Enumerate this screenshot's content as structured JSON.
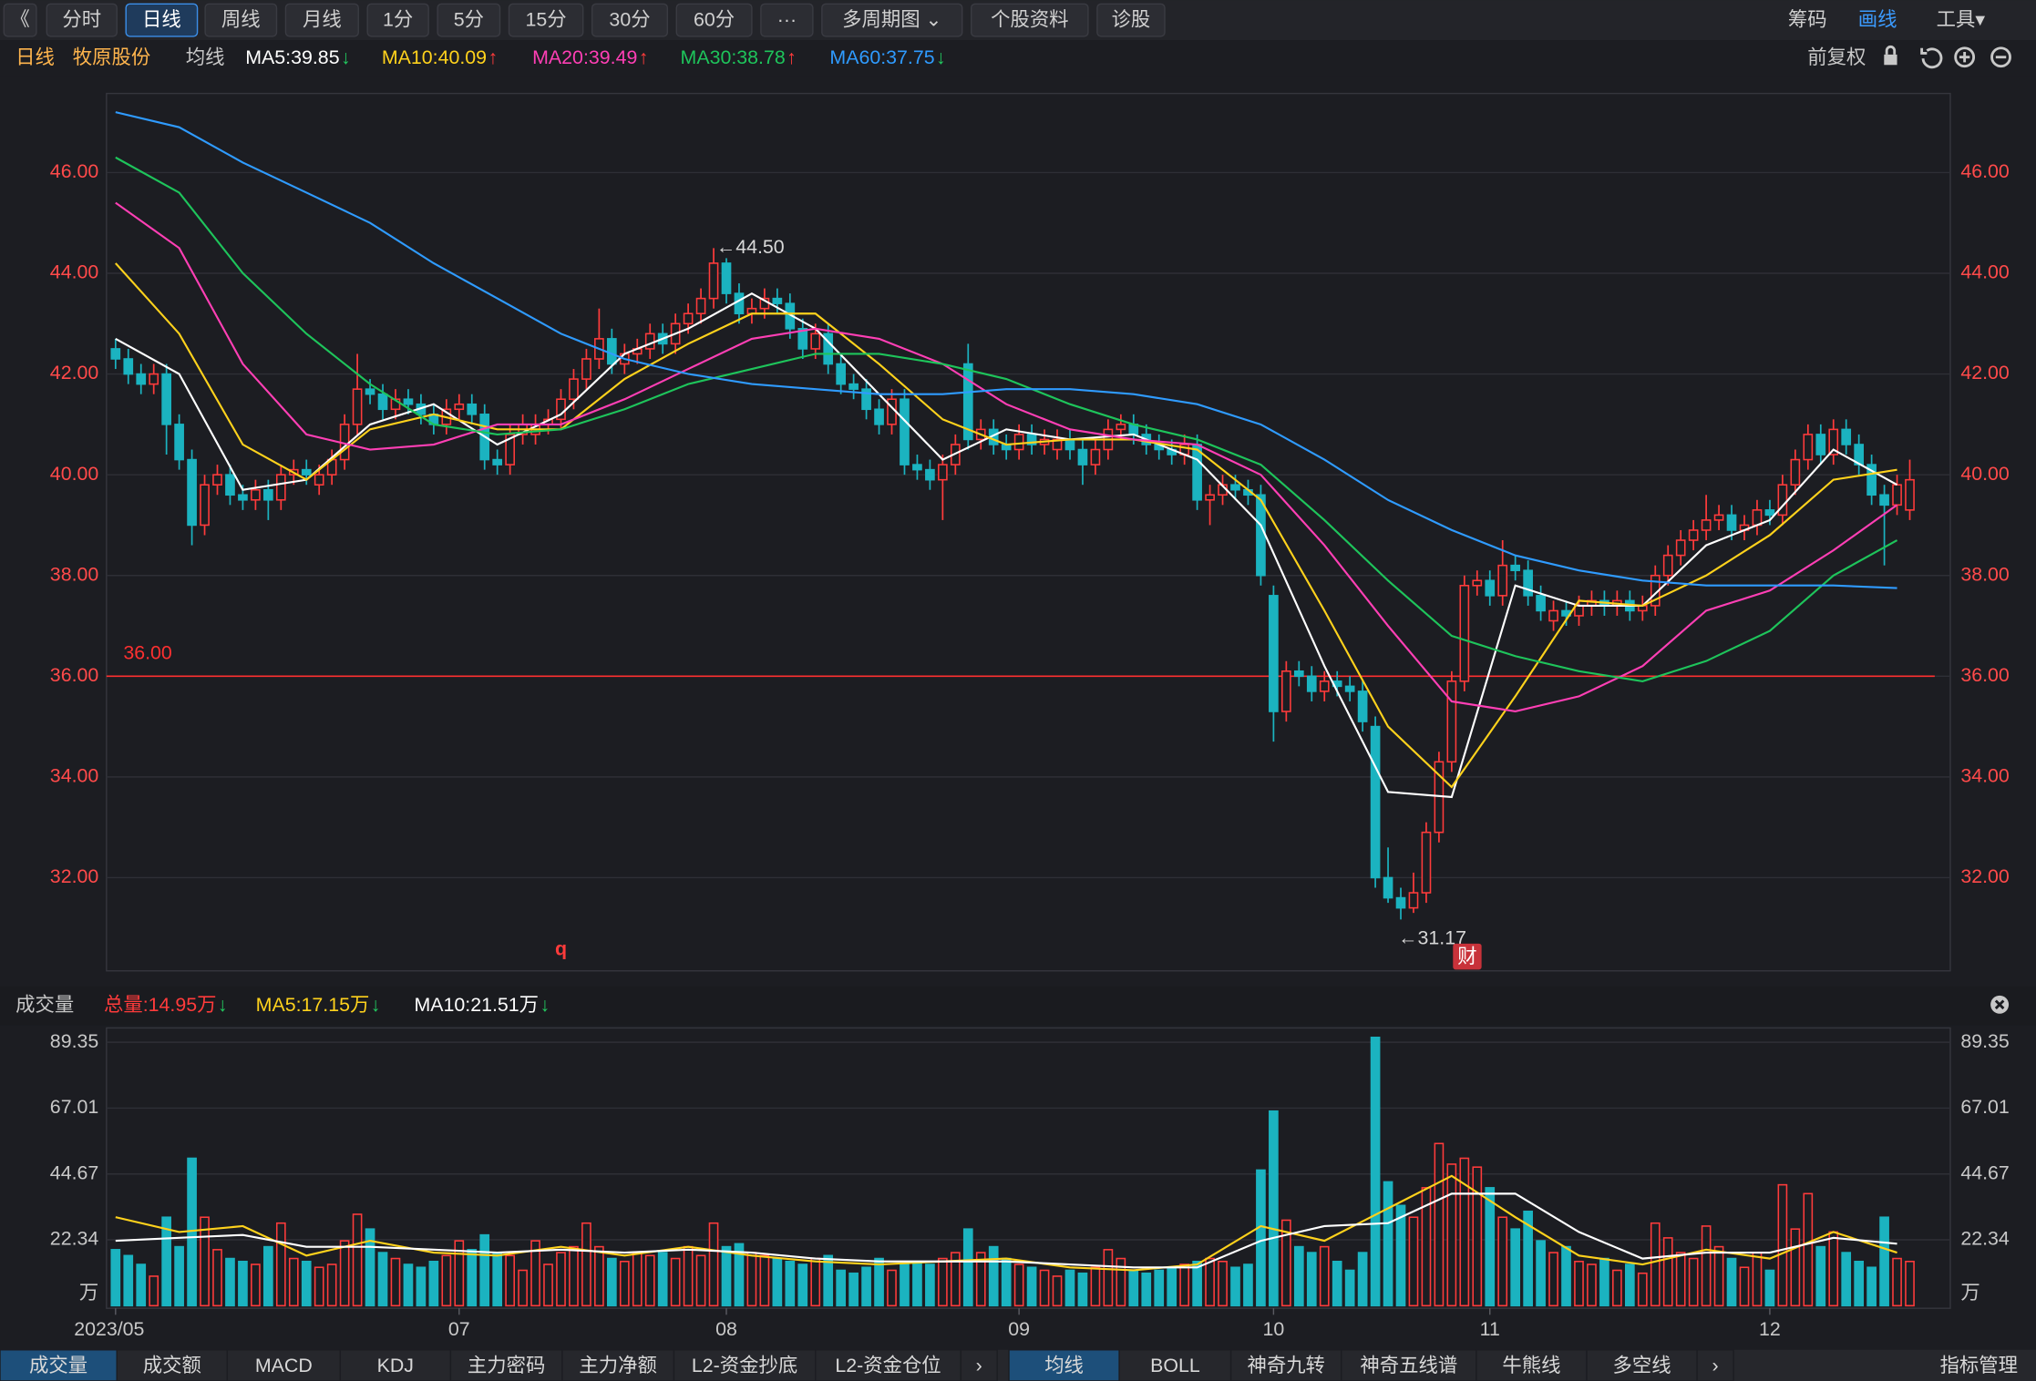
{
  "toolbar": {
    "left": [
      "《",
      "分时",
      "日线",
      "周线",
      "月线",
      "1分",
      "5分",
      "15分",
      "30分",
      "60分",
      "···",
      "多周期图 ⌄",
      "个股资料",
      "诊股"
    ],
    "active": 2,
    "right": [
      "筹码",
      "画线",
      "工具▾"
    ],
    "highlight": 1
  },
  "chart_data": {
    "type": "candlestick",
    "view": "日线",
    "stock": "牧原股份",
    "ma_label": "均线",
    "adjust": "前复权",
    "up_color": "#ff3b3b",
    "down_color": "#1bb3c0",
    "ylim": [
      30.15,
      47.57
    ],
    "yticks": [
      {
        "value": 32,
        "label": "32.00"
      },
      {
        "value": 34,
        "label": "34.00"
      },
      {
        "value": 36,
        "label": "36.00"
      },
      {
        "value": 38,
        "label": "38.00"
      },
      {
        "value": 40,
        "label": "40.00"
      },
      {
        "value": 42,
        "label": "42.00"
      },
      {
        "value": 44,
        "label": "44.00"
      },
      {
        "value": 46,
        "label": "46.00"
      }
    ],
    "grid": true,
    "xticks": [
      {
        "value": 0,
        "label": "2023/05"
      },
      {
        "value": 27,
        "label": "07"
      },
      {
        "value": 48,
        "label": "08"
      },
      {
        "value": 71,
        "label": "09"
      },
      {
        "value": 91,
        "label": "10"
      },
      {
        "value": 108,
        "label": "11"
      },
      {
        "value": 130,
        "label": "12"
      }
    ],
    "hline": {
      "value": 36,
      "label": "36.00",
      "color": "#ff3030"
    },
    "annotations": {
      "high": "←44.50",
      "low": "←31.17",
      "marker": "q",
      "badge": "财"
    },
    "candles": [
      [
        42.5,
        42.7,
        42.1,
        42.3
      ],
      [
        42.3,
        42.5,
        41.8,
        42.0
      ],
      [
        42.0,
        42.2,
        41.6,
        41.8
      ],
      [
        41.8,
        42.2,
        41.6,
        42.0
      ],
      [
        42.0,
        42.2,
        40.4,
        41.0
      ],
      [
        41.0,
        41.2,
        40.1,
        40.3
      ],
      [
        40.3,
        40.5,
        38.6,
        39.0
      ],
      [
        39.0,
        40.0,
        38.8,
        39.8
      ],
      [
        39.8,
        40.2,
        39.6,
        40.0
      ],
      [
        40.0,
        40.2,
        39.4,
        39.6
      ],
      [
        39.6,
        39.8,
        39.3,
        39.5
      ],
      [
        39.5,
        39.9,
        39.3,
        39.7
      ],
      [
        39.7,
        39.9,
        39.1,
        39.5
      ],
      [
        39.5,
        40.2,
        39.3,
        40.0
      ],
      [
        40.0,
        40.3,
        39.8,
        40.1
      ],
      [
        40.1,
        40.3,
        39.8,
        40.0
      ],
      [
        39.8,
        40.2,
        39.6,
        40.0
      ],
      [
        40.0,
        40.5,
        39.8,
        40.3
      ],
      [
        40.3,
        41.2,
        40.1,
        41.0
      ],
      [
        41.0,
        42.4,
        40.8,
        41.7
      ],
      [
        41.7,
        41.9,
        41.4,
        41.6
      ],
      [
        41.6,
        41.8,
        41.1,
        41.3
      ],
      [
        41.3,
        41.7,
        41.1,
        41.5
      ],
      [
        41.5,
        41.7,
        41.2,
        41.4
      ],
      [
        41.4,
        41.6,
        41.0,
        41.2
      ],
      [
        41.2,
        41.4,
        40.8,
        41.0
      ],
      [
        41.0,
        41.5,
        40.8,
        41.3
      ],
      [
        41.3,
        41.6,
        41.1,
        41.4
      ],
      [
        41.4,
        41.6,
        41.0,
        41.2
      ],
      [
        41.2,
        41.4,
        40.1,
        40.3
      ],
      [
        40.3,
        40.5,
        40.0,
        40.2
      ],
      [
        40.2,
        41.0,
        40.0,
        40.8
      ],
      [
        40.8,
        41.2,
        40.6,
        41.0
      ],
      [
        40.8,
        41.2,
        40.6,
        41.0
      ],
      [
        41.0,
        41.3,
        40.8,
        41.1
      ],
      [
        41.1,
        41.7,
        40.9,
        41.5
      ],
      [
        41.5,
        42.1,
        41.3,
        41.9
      ],
      [
        41.9,
        42.5,
        41.7,
        42.3
      ],
      [
        42.3,
        43.3,
        42.1,
        42.7
      ],
      [
        42.7,
        42.9,
        42.0,
        42.2
      ],
      [
        42.2,
        42.6,
        42.0,
        42.4
      ],
      [
        42.4,
        42.7,
        42.2,
        42.5
      ],
      [
        42.5,
        43.0,
        42.3,
        42.8
      ],
      [
        42.8,
        43.0,
        42.4,
        42.6
      ],
      [
        42.6,
        43.2,
        42.4,
        43.0
      ],
      [
        43.0,
        43.4,
        42.8,
        43.2
      ],
      [
        43.2,
        43.7,
        43.0,
        43.5
      ],
      [
        43.5,
        44.5,
        43.3,
        44.2
      ],
      [
        44.2,
        44.3,
        43.4,
        43.6
      ],
      [
        43.6,
        43.8,
        43.0,
        43.2
      ],
      [
        43.2,
        43.5,
        43.0,
        43.3
      ],
      [
        43.3,
        43.7,
        43.1,
        43.5
      ],
      [
        43.5,
        43.7,
        43.2,
        43.4
      ],
      [
        43.4,
        43.6,
        42.7,
        42.9
      ],
      [
        42.9,
        43.1,
        42.3,
        42.5
      ],
      [
        42.5,
        43.0,
        42.3,
        42.8
      ],
      [
        42.8,
        43.0,
        42.0,
        42.2
      ],
      [
        42.2,
        42.4,
        41.6,
        41.8
      ],
      [
        41.8,
        42.0,
        41.5,
        41.7
      ],
      [
        41.7,
        41.9,
        41.1,
        41.3
      ],
      [
        41.3,
        41.5,
        40.8,
        41.0
      ],
      [
        41.0,
        41.7,
        40.8,
        41.5
      ],
      [
        41.5,
        41.7,
        40.0,
        40.2
      ],
      [
        40.2,
        40.4,
        39.9,
        40.1
      ],
      [
        40.1,
        40.3,
        39.7,
        39.9
      ],
      [
        39.9,
        40.4,
        39.1,
        40.2
      ],
      [
        40.2,
        40.8,
        40.0,
        40.6
      ],
      [
        42.2,
        42.6,
        40.5,
        40.7
      ],
      [
        40.7,
        41.1,
        40.5,
        40.9
      ],
      [
        40.9,
        41.1,
        40.4,
        40.6
      ],
      [
        40.6,
        40.8,
        40.3,
        40.5
      ],
      [
        40.5,
        41.0,
        40.3,
        40.8
      ],
      [
        40.8,
        41.0,
        40.4,
        40.6
      ],
      [
        40.6,
        40.9,
        40.4,
        40.7
      ],
      [
        40.5,
        40.9,
        40.3,
        40.7
      ],
      [
        40.7,
        40.9,
        40.3,
        40.5
      ],
      [
        40.5,
        40.7,
        39.8,
        40.2
      ],
      [
        40.2,
        40.7,
        40.0,
        40.5
      ],
      [
        40.5,
        41.1,
        40.3,
        40.9
      ],
      [
        40.9,
        41.2,
        40.7,
        41.0
      ],
      [
        41.0,
        41.2,
        40.6,
        40.8
      ],
      [
        40.8,
        41.0,
        40.4,
        40.6
      ],
      [
        40.6,
        40.8,
        40.3,
        40.5
      ],
      [
        40.5,
        40.7,
        40.2,
        40.4
      ],
      [
        40.4,
        40.8,
        40.2,
        40.6
      ],
      [
        40.6,
        40.8,
        39.3,
        39.5
      ],
      [
        39.5,
        39.8,
        39.0,
        39.6
      ],
      [
        39.6,
        40.0,
        39.4,
        39.8
      ],
      [
        39.8,
        40.0,
        39.5,
        39.7
      ],
      [
        39.7,
        39.9,
        39.4,
        39.6
      ],
      [
        39.6,
        39.8,
        37.8,
        38.0
      ],
      [
        37.6,
        37.8,
        34.7,
        35.3
      ],
      [
        35.3,
        36.3,
        35.1,
        36.1
      ],
      [
        36.1,
        36.3,
        35.8,
        36.0
      ],
      [
        36.0,
        36.2,
        35.5,
        35.7
      ],
      [
        35.7,
        36.1,
        35.5,
        35.9
      ],
      [
        35.9,
        36.1,
        35.6,
        35.8
      ],
      [
        35.8,
        36.0,
        35.5,
        35.7
      ],
      [
        35.7,
        35.9,
        34.9,
        35.1
      ],
      [
        35.0,
        35.2,
        31.8,
        32.0
      ],
      [
        32.0,
        32.6,
        31.5,
        31.6
      ],
      [
        31.6,
        31.8,
        31.17,
        31.4
      ],
      [
        31.4,
        32.1,
        31.3,
        31.7
      ],
      [
        31.7,
        33.1,
        31.5,
        32.9
      ],
      [
        32.9,
        34.5,
        32.7,
        34.3
      ],
      [
        34.3,
        36.1,
        34.1,
        35.9
      ],
      [
        35.9,
        38.0,
        35.7,
        37.8
      ],
      [
        37.8,
        38.1,
        37.6,
        37.9
      ],
      [
        37.9,
        38.1,
        37.4,
        37.6
      ],
      [
        37.6,
        38.7,
        37.4,
        38.2
      ],
      [
        38.2,
        38.4,
        37.9,
        38.1
      ],
      [
        38.1,
        38.3,
        37.4,
        37.6
      ],
      [
        37.6,
        37.8,
        37.1,
        37.3
      ],
      [
        37.1,
        37.5,
        36.9,
        37.3
      ],
      [
        37.3,
        37.5,
        37.0,
        37.2
      ],
      [
        37.2,
        37.6,
        37.0,
        37.4
      ],
      [
        37.4,
        37.7,
        37.2,
        37.5
      ],
      [
        37.5,
        37.7,
        37.2,
        37.4
      ],
      [
        37.4,
        37.7,
        37.2,
        37.5
      ],
      [
        37.5,
        37.7,
        37.1,
        37.3
      ],
      [
        37.3,
        37.6,
        37.1,
        37.4
      ],
      [
        37.4,
        38.2,
        37.2,
        38.0
      ],
      [
        38.0,
        38.6,
        37.8,
        38.4
      ],
      [
        38.4,
        38.9,
        38.2,
        38.7
      ],
      [
        38.7,
        39.1,
        38.5,
        38.9
      ],
      [
        38.9,
        39.6,
        38.7,
        39.1
      ],
      [
        39.1,
        39.4,
        38.9,
        39.2
      ],
      [
        39.2,
        39.4,
        38.7,
        38.9
      ],
      [
        38.9,
        39.2,
        38.7,
        39.0
      ],
      [
        39.0,
        39.5,
        38.8,
        39.3
      ],
      [
        39.3,
        39.5,
        39.0,
        39.2
      ],
      [
        39.2,
        40.0,
        39.0,
        39.8
      ],
      [
        39.8,
        40.5,
        39.6,
        40.3
      ],
      [
        40.3,
        41.0,
        40.1,
        40.8
      ],
      [
        40.8,
        41.0,
        40.2,
        40.4
      ],
      [
        40.4,
        41.1,
        40.2,
        40.9
      ],
      [
        40.9,
        41.1,
        40.4,
        40.6
      ],
      [
        40.6,
        40.8,
        40.0,
        40.2
      ],
      [
        40.2,
        40.4,
        39.4,
        39.6
      ],
      [
        39.6,
        39.8,
        38.2,
        39.4
      ],
      [
        39.4,
        40.0,
        39.2,
        39.8
      ],
      [
        39.3,
        40.3,
        39.1,
        39.9
      ]
    ],
    "ma_x": [
      0,
      5,
      10,
      15,
      20,
      25,
      30,
      35,
      40,
      45,
      50,
      55,
      60,
      65,
      70,
      75,
      80,
      85,
      90,
      95,
      100,
      105,
      110,
      115,
      120,
      125,
      130,
      135,
      140
    ],
    "series": [
      {
        "label": "MA5:39.85",
        "trend": "↓",
        "trend_color": "#22c55e",
        "color": "#ffffff",
        "values": [
          42.7,
          42.0,
          39.7,
          39.9,
          41.0,
          41.4,
          40.6,
          41.2,
          42.4,
          42.9,
          43.6,
          42.9,
          41.6,
          40.3,
          40.9,
          40.7,
          40.8,
          40.3,
          39.0,
          36.2,
          33.7,
          33.6,
          37.8,
          37.4,
          37.4,
          38.6,
          39.1,
          40.5,
          39.8
        ]
      },
      {
        "label": "MA10:40.09",
        "trend": "↑",
        "trend_color": "#ff3b3b",
        "color": "#ffd21c",
        "values": [
          44.2,
          42.8,
          40.6,
          39.9,
          40.9,
          41.2,
          40.9,
          40.9,
          41.9,
          42.6,
          43.2,
          43.2,
          42.2,
          41.1,
          40.6,
          40.7,
          40.7,
          40.5,
          39.5,
          37.3,
          35.0,
          33.8,
          35.6,
          37.5,
          37.4,
          38.0,
          38.8,
          39.9,
          40.1
        ]
      },
      {
        "label": "MA20:39.49",
        "trend": "↑",
        "trend_color": "#ff3b3b",
        "color": "#ff3fb5",
        "values": [
          45.4,
          44.5,
          42.2,
          40.8,
          40.5,
          40.6,
          41.0,
          41.0,
          41.5,
          42.1,
          42.7,
          42.9,
          42.7,
          42.2,
          41.4,
          40.9,
          40.7,
          40.6,
          40.0,
          38.6,
          37.0,
          35.5,
          35.3,
          35.6,
          36.2,
          37.3,
          37.7,
          38.5,
          39.4
        ]
      },
      {
        "label": "MA30:38.78",
        "trend": "↑",
        "trend_color": "#ff3b3b",
        "color": "#1ec45b",
        "values": [
          46.3,
          45.6,
          44.0,
          42.8,
          41.8,
          41.0,
          40.8,
          40.9,
          41.3,
          41.8,
          42.1,
          42.4,
          42.4,
          42.2,
          41.9,
          41.4,
          41.0,
          40.7,
          40.2,
          39.1,
          37.9,
          36.8,
          36.4,
          36.1,
          35.9,
          36.3,
          36.9,
          38.0,
          38.7
        ]
      },
      {
        "label": "MA60:37.75",
        "trend": "↓",
        "trend_color": "#22c55e",
        "color": "#2f9bff",
        "values": [
          47.2,
          46.9,
          46.2,
          45.6,
          45.0,
          44.2,
          43.5,
          42.8,
          42.3,
          42.0,
          41.8,
          41.7,
          41.6,
          41.6,
          41.7,
          41.7,
          41.6,
          41.4,
          41.0,
          40.3,
          39.5,
          38.9,
          38.4,
          38.1,
          37.9,
          37.8,
          37.8,
          37.8,
          37.75
        ]
      }
    ],
    "volume": {
      "title": "成交量",
      "unit": "万",
      "total": {
        "label": "总量:14.95万",
        "trend": "↓",
        "trend_color": "#22c55e",
        "color": "#ff3b3b"
      },
      "ylim": [
        0,
        94.2
      ],
      "yticks": [
        22.34,
        44.67,
        67.01,
        89.35
      ],
      "values": [
        19,
        17,
        14,
        10,
        30,
        20,
        50,
        30,
        19,
        16,
        15,
        14,
        20,
        28,
        16,
        15,
        13,
        14,
        22,
        31,
        26,
        18,
        16,
        14,
        13,
        15,
        17,
        22,
        19,
        24,
        18,
        17,
        12,
        22,
        14,
        18,
        20,
        28,
        20,
        16,
        15,
        18,
        17,
        18,
        16,
        20,
        17,
        28,
        20,
        21,
        18,
        17,
        16,
        15,
        14,
        16,
        17,
        12,
        11,
        13,
        16,
        12,
        14,
        15,
        14,
        16,
        18,
        26,
        18,
        20,
        16,
        14,
        13,
        12,
        10,
        12,
        11,
        13,
        19,
        16,
        12,
        11,
        12,
        13,
        14,
        15,
        16,
        15,
        13,
        14,
        46,
        66,
        29,
        20,
        18,
        20,
        15,
        12,
        18,
        91,
        42,
        34,
        30,
        40,
        55,
        48,
        50,
        47,
        40,
        30,
        26,
        32,
        22,
        18,
        20,
        15,
        14,
        16,
        12,
        14,
        11,
        28,
        23,
        18,
        16,
        27,
        20,
        16,
        13,
        18,
        12,
        41,
        26,
        38,
        20,
        25,
        18,
        15,
        13,
        30,
        16,
        15
      ],
      "series": [
        {
          "label": "MA5:17.15万",
          "trend": "↓",
          "trend_color": "#22c55e",
          "color": "#ffd21c",
          "values": [
            30,
            25,
            27,
            17,
            22,
            18,
            17,
            20,
            17,
            20,
            17,
            15,
            14,
            15,
            16,
            13,
            12,
            14,
            27,
            22,
            33,
            44,
            30,
            17,
            14,
            19,
            16,
            25,
            18
          ]
        },
        {
          "label": "MA10:21.51万",
          "trend": "↓",
          "trend_color": "#22c55e",
          "color": "#ffffff",
          "values": [
            22,
            23,
            24,
            20,
            20,
            19,
            18,
            19,
            18,
            19,
            18,
            16,
            15,
            15,
            15,
            14,
            13,
            13,
            22,
            27,
            28,
            38,
            38,
            25,
            16,
            18,
            18,
            23,
            21
          ]
        }
      ]
    }
  },
  "tabs": {
    "left": [
      "成交量",
      "成交额",
      "MACD",
      "KDJ",
      "主力密码",
      "主力净额",
      "L2-资金抄底",
      "L2-资金仓位",
      "›"
    ],
    "right": [
      "均线",
      "BOLL",
      "神奇九转",
      "神奇五线谱",
      "牛熊线",
      "多空线",
      "›"
    ],
    "manage": "指标管理"
  }
}
